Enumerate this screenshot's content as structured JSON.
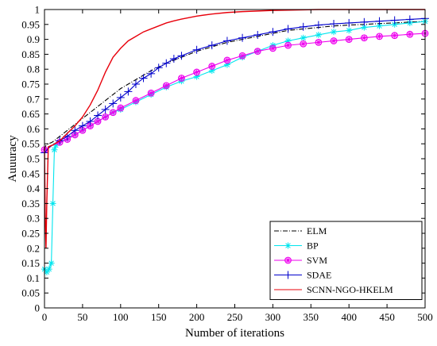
{
  "chart_data": {
    "type": "line",
    "title": "",
    "xlabel": "Number of iterations",
    "ylabel": "Auuuracy",
    "xlim": [
      0,
      500
    ],
    "ylim": [
      0,
      1
    ],
    "xticks": [
      0,
      50,
      100,
      150,
      200,
      250,
      300,
      350,
      400,
      450,
      500
    ],
    "yticks": [
      0,
      0.05,
      0.1,
      0.15,
      0.2,
      0.25,
      0.3,
      0.35,
      0.4,
      0.45,
      0.5,
      0.55,
      0.6,
      0.65,
      0.7,
      0.75,
      0.8,
      0.85,
      0.9,
      0.95,
      1
    ],
    "grid": false,
    "legend_position": "bottom-right",
    "series": [
      {
        "name": "ELM",
        "color": "#000000",
        "line_style": "dash-dot",
        "marker": "none",
        "x": [
          0,
          2,
          5,
          10,
          20,
          30,
          40,
          50,
          60,
          70,
          80,
          90,
          100,
          120,
          140,
          160,
          180,
          200,
          220,
          240,
          260,
          280,
          300,
          320,
          340,
          360,
          380,
          400,
          420,
          440,
          460,
          480,
          500
        ],
        "y": [
          0.53,
          0.545,
          0.55,
          0.555,
          0.575,
          0.595,
          0.615,
          0.635,
          0.655,
          0.675,
          0.695,
          0.715,
          0.735,
          0.765,
          0.795,
          0.82,
          0.84,
          0.86,
          0.875,
          0.89,
          0.9,
          0.91,
          0.92,
          0.93,
          0.935,
          0.94,
          0.945,
          0.948,
          0.95,
          0.953,
          0.955,
          0.958,
          0.96
        ]
      },
      {
        "name": "BP",
        "color": "#00e5ee",
        "line_style": "solid",
        "marker": "asterisk",
        "x": [
          0,
          3,
          6,
          9,
          11,
          13,
          15,
          20,
          30,
          40,
          50,
          60,
          70,
          80,
          90,
          100,
          120,
          140,
          160,
          180,
          200,
          220,
          240,
          260,
          280,
          300,
          320,
          340,
          360,
          380,
          400,
          420,
          440,
          460,
          480,
          500
        ],
        "y": [
          0.13,
          0.12,
          0.13,
          0.15,
          0.35,
          0.53,
          0.545,
          0.555,
          0.565,
          0.58,
          0.595,
          0.61,
          0.625,
          0.64,
          0.655,
          0.665,
          0.69,
          0.715,
          0.74,
          0.76,
          0.775,
          0.795,
          0.815,
          0.84,
          0.86,
          0.88,
          0.895,
          0.905,
          0.915,
          0.925,
          0.93,
          0.94,
          0.945,
          0.95,
          0.955,
          0.96
        ]
      },
      {
        "name": "SVM",
        "color": "#ee00ee",
        "line_style": "solid",
        "marker": "circle-star",
        "x": [
          0,
          5,
          10,
          20,
          30,
          40,
          50,
          60,
          70,
          80,
          90,
          100,
          120,
          140,
          160,
          180,
          200,
          220,
          240,
          260,
          280,
          300,
          320,
          340,
          360,
          380,
          400,
          420,
          440,
          460,
          480,
          500
        ],
        "y": [
          0.53,
          0.535,
          0.545,
          0.555,
          0.565,
          0.58,
          0.595,
          0.61,
          0.625,
          0.64,
          0.655,
          0.67,
          0.695,
          0.72,
          0.745,
          0.77,
          0.79,
          0.81,
          0.83,
          0.845,
          0.86,
          0.87,
          0.88,
          0.885,
          0.89,
          0.895,
          0.9,
          0.905,
          0.91,
          0.913,
          0.917,
          0.92
        ]
      },
      {
        "name": "SDAE",
        "color": "#0000cc",
        "line_style": "solid",
        "marker": "plus",
        "x": [
          0,
          5,
          10,
          20,
          30,
          40,
          50,
          60,
          70,
          80,
          90,
          100,
          110,
          120,
          130,
          140,
          150,
          160,
          170,
          180,
          200,
          220,
          240,
          260,
          280,
          300,
          320,
          340,
          360,
          380,
          400,
          420,
          440,
          460,
          480,
          500
        ],
        "y": [
          0.52,
          0.535,
          0.545,
          0.56,
          0.575,
          0.595,
          0.61,
          0.625,
          0.645,
          0.665,
          0.685,
          0.705,
          0.725,
          0.75,
          0.77,
          0.785,
          0.805,
          0.82,
          0.835,
          0.845,
          0.865,
          0.88,
          0.895,
          0.905,
          0.915,
          0.925,
          0.935,
          0.942,
          0.948,
          0.952,
          0.955,
          0.958,
          0.961,
          0.964,
          0.967,
          0.97
        ]
      },
      {
        "name": "SCNN-NGO-HKELM",
        "color": "#e8000b",
        "line_style": "solid",
        "marker": "none",
        "x": [
          0,
          1,
          2,
          3,
          5,
          10,
          20,
          30,
          40,
          50,
          60,
          70,
          80,
          90,
          100,
          110,
          120,
          130,
          140,
          150,
          160,
          170,
          180,
          190,
          200,
          220,
          240,
          260,
          280,
          300,
          320,
          340,
          360,
          400,
          450,
          500
        ],
        "y": [
          0.54,
          0.3,
          0.2,
          0.35,
          0.54,
          0.545,
          0.56,
          0.585,
          0.61,
          0.64,
          0.68,
          0.73,
          0.79,
          0.84,
          0.87,
          0.895,
          0.91,
          0.925,
          0.935,
          0.945,
          0.955,
          0.962,
          0.968,
          0.973,
          0.978,
          0.985,
          0.99,
          0.993,
          0.995,
          0.997,
          0.998,
          0.999,
          1.0,
          1.0,
          1.0,
          1.0
        ]
      }
    ]
  }
}
